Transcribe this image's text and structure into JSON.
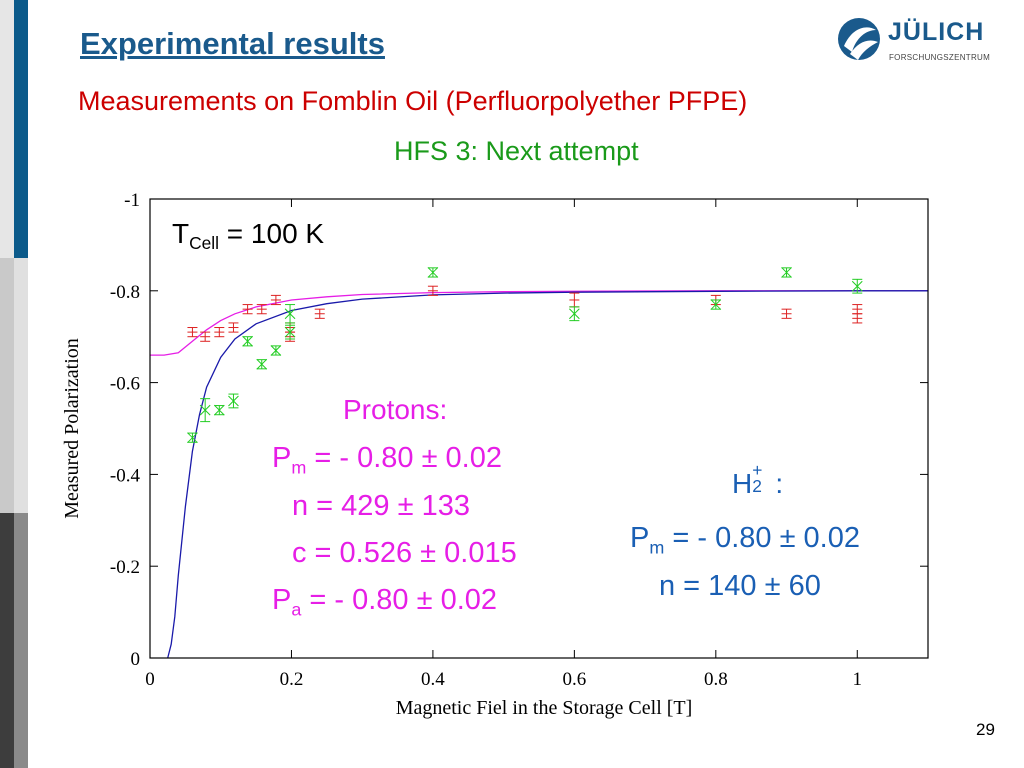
{
  "slide": {
    "title": "Experimental results",
    "subtitle": "Measurements on Fomblin Oil (Perfluorpolyether PFPE)",
    "subtitle2": "HFS 3: Next attempt",
    "page_number": "29"
  },
  "logo": {
    "name": "JÜLICH",
    "tagline": "FORSCHUNGSZENTRUM",
    "icon": "julich-logo-icon"
  },
  "annotations": {
    "t_cell": {
      "prefix": "T",
      "sub": "Cell",
      "suffix": " = 100 K"
    },
    "protons": {
      "heading": "Protons:",
      "pm_prefix": "P",
      "pm_sub": "m",
      "pm_value": " = - 0.80 ± 0.02",
      "n": "n = 429 ± 133",
      "c": "c = 0.526 ± 0.015",
      "pa_prefix": "P",
      "pa_sub": "a",
      "pa_value": " = - 0.80 ± 0.02"
    },
    "h2": {
      "heading_prefix": "H",
      "heading_sub": "2",
      "heading_sup": "+",
      "heading_suffix": " :",
      "pm_prefix": "P",
      "pm_sub": "m",
      "pm_value": " = - 0.80 ± 0.02",
      "n": "n = 140 ± 60"
    }
  },
  "colors": {
    "title": "#1a5a8c",
    "subtitle": "#cc0000",
    "subtitle2": "#1a9a1a",
    "protons": "#e61ee6",
    "h2": "#1a5fb4",
    "proton_points": "#dd2222",
    "h2_points": "#22cc22",
    "proton_fit": "#e61ee6",
    "h2_fit": "#1a1aaa"
  },
  "chart_data": {
    "type": "scatter",
    "xlabel": "Magnetic Fiel in the Storage Cell [T]",
    "ylabel": "Measured Polarization",
    "xlim": [
      0,
      1.1
    ],
    "ylim": [
      0,
      -1
    ],
    "x_ticks": [
      0,
      0.2,
      0.4,
      0.6,
      0.8,
      1
    ],
    "x_tick_labels": [
      "0",
      "0.2",
      "0.4",
      "0.6",
      "0.8",
      "1"
    ],
    "y_ticks": [
      0,
      -0.2,
      -0.4,
      -0.6,
      -0.8,
      -1
    ],
    "y_tick_labels": [
      "0",
      "-0.2",
      "-0.4",
      "-0.6",
      "-0.8",
      "-1"
    ],
    "grid": false,
    "series": [
      {
        "marker": "plus-errorbar",
        "points": [
          {
            "x": 0.06,
            "y": -0.71,
            "err": 0.01
          },
          {
            "x": 0.078,
            "y": -0.7,
            "err": 0.01
          },
          {
            "x": 0.098,
            "y": -0.71,
            "err": 0.01
          },
          {
            "x": 0.118,
            "y": -0.72,
            "err": 0.01
          },
          {
            "x": 0.138,
            "y": -0.76,
            "err": 0.01
          },
          {
            "x": 0.158,
            "y": -0.76,
            "err": 0.01
          },
          {
            "x": 0.178,
            "y": -0.78,
            "err": 0.01
          },
          {
            "x": 0.198,
            "y": -0.7,
            "err": 0.01
          },
          {
            "x": 0.198,
            "y": -0.72,
            "err": 0.01
          },
          {
            "x": 0.24,
            "y": -0.75,
            "err": 0.01
          },
          {
            "x": 0.4,
            "y": -0.8,
            "err": 0.01
          },
          {
            "x": 0.6,
            "y": -0.78,
            "err": 0.015
          },
          {
            "x": 0.8,
            "y": -0.78,
            "err": 0.01
          },
          {
            "x": 0.9,
            "y": -0.75,
            "err": 0.01
          },
          {
            "x": 1.0,
            "y": -0.74,
            "err": 0.01
          },
          {
            "x": 1.0,
            "y": -0.76,
            "err": 0.01
          }
        ]
      },
      {
        "marker": "x-errorbar",
        "points": [
          {
            "x": 0.06,
            "y": -0.48,
            "err": 0.01
          },
          {
            "x": 0.078,
            "y": -0.54,
            "err": 0.025
          },
          {
            "x": 0.098,
            "y": -0.54,
            "err": 0.01
          },
          {
            "x": 0.118,
            "y": -0.56,
            "err": 0.015
          },
          {
            "x": 0.138,
            "y": -0.69,
            "err": 0.01
          },
          {
            "x": 0.158,
            "y": -0.64,
            "err": 0.01
          },
          {
            "x": 0.178,
            "y": -0.67,
            "err": 0.01
          },
          {
            "x": 0.198,
            "y": -0.71,
            "err": 0.015
          },
          {
            "x": 0.198,
            "y": -0.75,
            "err": 0.02
          },
          {
            "x": 0.4,
            "y": -0.84,
            "err": 0.01
          },
          {
            "x": 0.6,
            "y": -0.75,
            "err": 0.015
          },
          {
            "x": 0.8,
            "y": -0.77,
            "err": 0.01
          },
          {
            "x": 0.9,
            "y": -0.84,
            "err": 0.01
          },
          {
            "x": 1.0,
            "y": -0.81,
            "err": 0.015
          }
        ]
      }
    ],
    "fits": [
      {
        "style": "line",
        "points": [
          [
            0,
            -0.66
          ],
          [
            0.02,
            -0.66
          ],
          [
            0.04,
            -0.665
          ],
          [
            0.06,
            -0.69
          ],
          [
            0.08,
            -0.715
          ],
          [
            0.1,
            -0.735
          ],
          [
            0.12,
            -0.75
          ],
          [
            0.15,
            -0.765
          ],
          [
            0.2,
            -0.78
          ],
          [
            0.25,
            -0.787
          ],
          [
            0.3,
            -0.792
          ],
          [
            0.4,
            -0.796
          ],
          [
            0.5,
            -0.798
          ],
          [
            0.6,
            -0.799
          ],
          [
            0.8,
            -0.8
          ],
          [
            1.0,
            -0.8
          ],
          [
            1.1,
            -0.8
          ]
        ]
      },
      {
        "style": "line",
        "points": [
          [
            0.025,
            0
          ],
          [
            0.03,
            -0.03
          ],
          [
            0.035,
            -0.09
          ],
          [
            0.04,
            -0.18
          ],
          [
            0.05,
            -0.33
          ],
          [
            0.06,
            -0.45
          ],
          [
            0.07,
            -0.53
          ],
          [
            0.08,
            -0.59
          ],
          [
            0.1,
            -0.655
          ],
          [
            0.12,
            -0.695
          ],
          [
            0.15,
            -0.728
          ],
          [
            0.2,
            -0.757
          ],
          [
            0.25,
            -0.772
          ],
          [
            0.3,
            -0.782
          ],
          [
            0.4,
            -0.791
          ],
          [
            0.5,
            -0.795
          ],
          [
            0.6,
            -0.797
          ],
          [
            0.8,
            -0.799
          ],
          [
            1.0,
            -0.8
          ],
          [
            1.1,
            -0.8
          ]
        ]
      }
    ]
  }
}
